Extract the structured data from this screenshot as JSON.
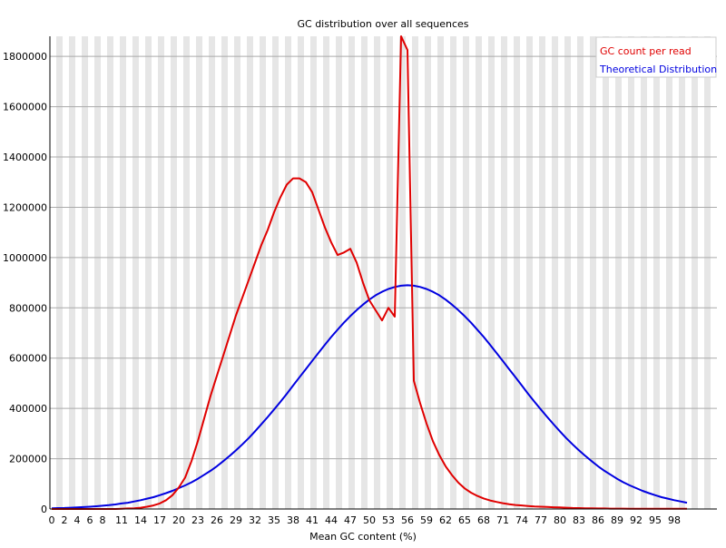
{
  "chart_data": {
    "type": "line",
    "title": "GC distribution over all sequences",
    "xlabel": "Mean GC content (%)",
    "ylabel": "",
    "x_tick_labels": [
      "0",
      "2",
      "4",
      "6",
      "8",
      "11",
      "14",
      "17",
      "20",
      "23",
      "26",
      "29",
      "32",
      "35",
      "38",
      "41",
      "44",
      "47",
      "50",
      "53",
      "56",
      "59",
      "62",
      "65",
      "68",
      "71",
      "74",
      "77",
      "80",
      "83",
      "86",
      "89",
      "92",
      "95",
      "98"
    ],
    "y_tick_labels": [
      "0",
      "200000",
      "400000",
      "600000",
      "800000",
      "1000000",
      "1200000",
      "1400000",
      "1600000",
      "1800000"
    ],
    "xlim": [
      0,
      104
    ],
    "ylim": [
      0,
      1880000
    ],
    "grid": "horizontal",
    "legend_position": "top-right",
    "colors": {
      "stripe": "#e6e6e6",
      "grid": "#aaaaaa"
    },
    "series": [
      {
        "name": "GC count per read",
        "color": "#e00000",
        "values": [
          0,
          0,
          0,
          0,
          0,
          0,
          0,
          0,
          0,
          0,
          0,
          1000,
          2000,
          3000,
          5000,
          9000,
          14000,
          22000,
          35000,
          55000,
          85000,
          125000,
          190000,
          270000,
          360000,
          450000,
          530000,
          610000,
          690000,
          770000,
          840000,
          910000,
          980000,
          1050000,
          1110000,
          1180000,
          1240000,
          1290000,
          1315000,
          1315000,
          1300000,
          1260000,
          1190000,
          1120000,
          1060000,
          1010000,
          1020000,
          1035000,
          980000,
          900000,
          830000,
          790000,
          750000,
          800000,
          765000,
          1880000,
          1825000,
          510000,
          420000,
          340000,
          270000,
          215000,
          170000,
          135000,
          105000,
          82000,
          65000,
          52000,
          42000,
          34000,
          28000,
          23000,
          19000,
          16000,
          14000,
          12000,
          10000,
          9000,
          8000,
          7000,
          6000,
          5000,
          4000,
          3500,
          3000,
          2500,
          2000,
          2000,
          1500,
          1500,
          1500,
          1000,
          1000,
          1000,
          1000,
          1000,
          1000,
          1000,
          1000,
          1000,
          1000
        ]
      },
      {
        "name": "Theoretical Distribution",
        "color": "#0000e0",
        "values": [
          2800,
          3500,
          4000,
          5000,
          6000,
          7500,
          9000,
          11000,
          13000,
          15000,
          18000,
          22000,
          25000,
          30000,
          35000,
          41000,
          47000,
          55000,
          63000,
          72000,
          83000,
          94000,
          106000,
          120000,
          136000,
          152000,
          170000,
          190000,
          211000,
          233000,
          257000,
          282000,
          309000,
          337000,
          366000,
          396000,
          426000,
          458000,
          491000,
          524000,
          556000,
          589000,
          621000,
          653000,
          684000,
          713000,
          741000,
          767000,
          791000,
          813000,
          833000,
          850000,
          864000,
          875000,
          883000,
          888000,
          890000,
          888000,
          883000,
          875000,
          864000,
          850000,
          833000,
          813000,
          791000,
          767000,
          741000,
          713000,
          684000,
          653000,
          621000,
          589000,
          556000,
          524000,
          491000,
          458000,
          426000,
          396000,
          366000,
          337000,
          309000,
          282000,
          257000,
          233000,
          211000,
          190000,
          170000,
          152000,
          136000,
          120000,
          106000,
          94000,
          83000,
          72000,
          63000,
          55000,
          47000,
          41000,
          35000,
          30000,
          25000
        ]
      }
    ]
  }
}
